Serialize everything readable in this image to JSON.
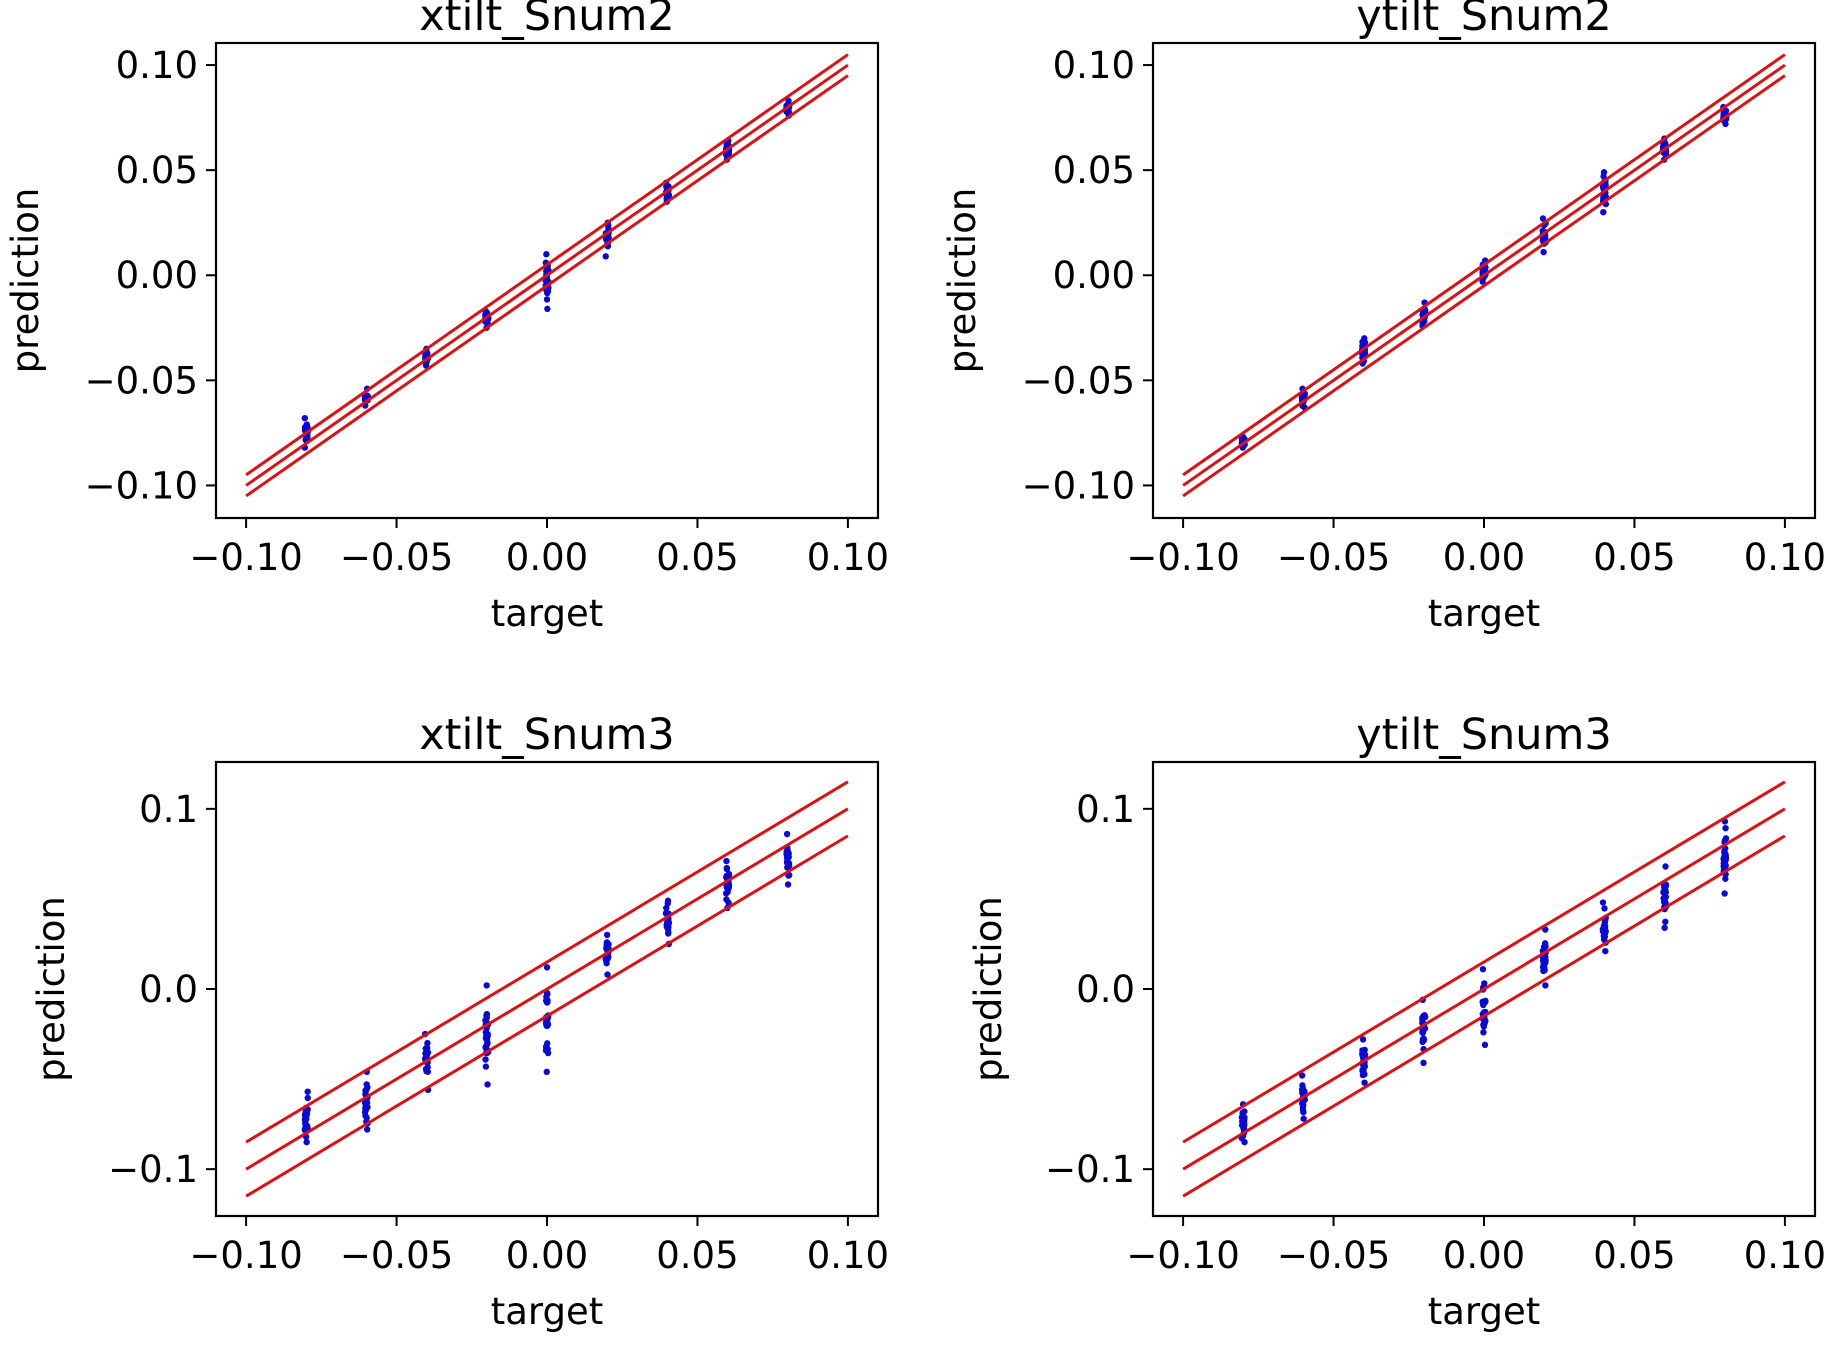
{
  "colors": {
    "points": "#0a0ad6",
    "lines": "#dd1111",
    "axes": "#000000"
  },
  "chart_data": [
    {
      "type": "scatter",
      "title": "xtilt_Snum2",
      "xlabel": "target",
      "ylabel": "prediction",
      "xlim": [
        -0.11,
        0.11
      ],
      "ylim": [
        -0.1155,
        0.1105
      ],
      "xticks": [
        -0.1,
        -0.05,
        0.0,
        0.05,
        0.1
      ],
      "xtick_labels": [
        "−0.10",
        "−0.05",
        "0.00",
        "0.05",
        "0.10"
      ],
      "yticks": [
        -0.1,
        -0.05,
        0.0,
        0.05,
        0.1
      ],
      "ytick_labels": [
        "−0.10",
        "−0.05",
        "0.00",
        "0.05",
        "0.10"
      ],
      "reference_lines": [
        {
          "name": "upper",
          "x": [
            -0.1,
            0.1
          ],
          "y": [
            -0.095,
            0.105
          ]
        },
        {
          "name": "identity",
          "x": [
            -0.1,
            0.1
          ],
          "y": [
            -0.1,
            0.1
          ]
        },
        {
          "name": "lower",
          "x": [
            -0.1,
            0.1
          ],
          "y": [
            -0.105,
            0.095
          ]
        }
      ],
      "point_groups": [
        {
          "x": -0.08,
          "y_min": -0.082,
          "y_max": -0.068
        },
        {
          "x": -0.06,
          "y_min": -0.062,
          "y_max": -0.054
        },
        {
          "x": -0.04,
          "y_min": -0.043,
          "y_max": -0.035
        },
        {
          "x": -0.02,
          "y_min": -0.025,
          "y_max": -0.017
        },
        {
          "x": 0.0,
          "y_min": -0.016,
          "y_max": 0.01
        },
        {
          "x": 0.02,
          "y_min": 0.009,
          "y_max": 0.025
        },
        {
          "x": 0.04,
          "y_min": 0.035,
          "y_max": 0.044
        },
        {
          "x": 0.06,
          "y_min": 0.055,
          "y_max": 0.064
        },
        {
          "x": 0.08,
          "y_min": 0.076,
          "y_max": 0.083
        }
      ]
    },
    {
      "type": "scatter",
      "title": "ytilt_Snum2",
      "xlabel": "target",
      "ylabel": "prediction",
      "xlim": [
        -0.11,
        0.11
      ],
      "ylim": [
        -0.1155,
        0.1105
      ],
      "xticks": [
        -0.1,
        -0.05,
        0.0,
        0.05,
        0.1
      ],
      "xtick_labels": [
        "−0.10",
        "−0.05",
        "0.00",
        "0.05",
        "0.10"
      ],
      "yticks": [
        -0.1,
        -0.05,
        0.0,
        0.05,
        0.1
      ],
      "ytick_labels": [
        "−0.10",
        "−0.05",
        "0.00",
        "0.05",
        "0.10"
      ],
      "reference_lines": [
        {
          "name": "upper",
          "x": [
            -0.1,
            0.1
          ],
          "y": [
            -0.095,
            0.105
          ]
        },
        {
          "name": "identity",
          "x": [
            -0.1,
            0.1
          ],
          "y": [
            -0.1,
            0.1
          ]
        },
        {
          "name": "lower",
          "x": [
            -0.1,
            0.1
          ],
          "y": [
            -0.105,
            0.095
          ]
        }
      ],
      "point_groups": [
        {
          "x": -0.08,
          "y_min": -0.082,
          "y_max": -0.077
        },
        {
          "x": -0.06,
          "y_min": -0.063,
          "y_max": -0.054
        },
        {
          "x": -0.04,
          "y_min": -0.042,
          "y_max": -0.03
        },
        {
          "x": -0.02,
          "y_min": -0.024,
          "y_max": -0.013
        },
        {
          "x": 0.0,
          "y_min": -0.003,
          "y_max": 0.007
        },
        {
          "x": 0.02,
          "y_min": 0.011,
          "y_max": 0.027
        },
        {
          "x": 0.04,
          "y_min": 0.03,
          "y_max": 0.049
        },
        {
          "x": 0.06,
          "y_min": 0.055,
          "y_max": 0.065
        },
        {
          "x": 0.08,
          "y_min": 0.072,
          "y_max": 0.08
        }
      ]
    },
    {
      "type": "scatter",
      "title": "xtilt_Snum3",
      "xlabel": "target",
      "ylabel": "prediction",
      "xlim": [
        -0.11,
        0.11
      ],
      "ylim": [
        -0.126,
        0.126
      ],
      "xticks": [
        -0.1,
        -0.05,
        0.0,
        0.05,
        0.1
      ],
      "xtick_labels": [
        "−0.10",
        "−0.05",
        "0.00",
        "0.05",
        "0.10"
      ],
      "yticks": [
        -0.1,
        0.0,
        0.1
      ],
      "ytick_labels": [
        "−0.1",
        "0.0",
        "0.1"
      ],
      "reference_lines": [
        {
          "name": "upper",
          "x": [
            -0.1,
            0.1
          ],
          "y": [
            -0.085,
            0.115
          ]
        },
        {
          "name": "identity",
          "x": [
            -0.1,
            0.1
          ],
          "y": [
            -0.1,
            0.1
          ]
        },
        {
          "name": "lower",
          "x": [
            -0.1,
            0.1
          ],
          "y": [
            -0.115,
            0.085
          ]
        }
      ],
      "point_groups": [
        {
          "x": -0.08,
          "y_min": -0.085,
          "y_max": -0.057
        },
        {
          "x": -0.06,
          "y_min": -0.078,
          "y_max": -0.046
        },
        {
          "x": -0.04,
          "y_min": -0.056,
          "y_max": -0.025
        },
        {
          "x": -0.02,
          "y_min": -0.053,
          "y_max": 0.002
        },
        {
          "x": 0.0,
          "y_min": -0.046,
          "y_max": 0.012
        },
        {
          "x": 0.02,
          "y_min": 0.008,
          "y_max": 0.03
        },
        {
          "x": 0.04,
          "y_min": 0.025,
          "y_max": 0.049
        },
        {
          "x": 0.06,
          "y_min": 0.045,
          "y_max": 0.071
        },
        {
          "x": 0.08,
          "y_min": 0.058,
          "y_max": 0.086
        }
      ]
    },
    {
      "type": "scatter",
      "title": "ytilt_Snum3",
      "xlabel": "target",
      "ylabel": "prediction",
      "xlim": [
        -0.11,
        0.11
      ],
      "ylim": [
        -0.126,
        0.126
      ],
      "xticks": [
        -0.1,
        -0.05,
        0.0,
        0.05,
        0.1
      ],
      "xtick_labels": [
        "−0.10",
        "−0.05",
        "0.00",
        "0.05",
        "0.10"
      ],
      "yticks": [
        -0.1,
        0.0,
        0.1
      ],
      "ytick_labels": [
        "−0.1",
        "0.0",
        "0.1"
      ],
      "reference_lines": [
        {
          "name": "upper",
          "x": [
            -0.1,
            0.1
          ],
          "y": [
            -0.085,
            0.115
          ]
        },
        {
          "name": "identity",
          "x": [
            -0.1,
            0.1
          ],
          "y": [
            -0.1,
            0.1
          ]
        },
        {
          "name": "lower",
          "x": [
            -0.1,
            0.1
          ],
          "y": [
            -0.115,
            0.085
          ]
        }
      ],
      "point_groups": [
        {
          "x": -0.08,
          "y_min": -0.085,
          "y_max": -0.064
        },
        {
          "x": -0.06,
          "y_min": -0.072,
          "y_max": -0.048
        },
        {
          "x": -0.04,
          "y_min": -0.052,
          "y_max": -0.028
        },
        {
          "x": -0.02,
          "y_min": -0.041,
          "y_max": -0.006
        },
        {
          "x": 0.0,
          "y_min": -0.031,
          "y_max": 0.011
        },
        {
          "x": 0.02,
          "y_min": 0.002,
          "y_max": 0.033
        },
        {
          "x": 0.04,
          "y_min": 0.021,
          "y_max": 0.048
        },
        {
          "x": 0.06,
          "y_min": 0.034,
          "y_max": 0.068
        },
        {
          "x": 0.08,
          "y_min": 0.053,
          "y_max": 0.093
        }
      ]
    }
  ]
}
